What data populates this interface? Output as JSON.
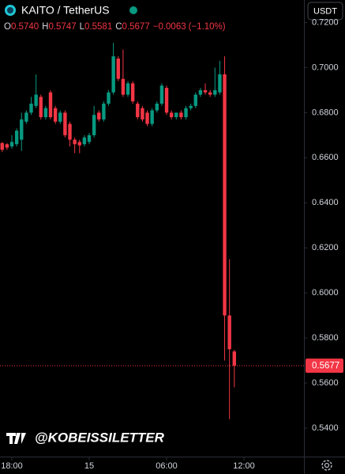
{
  "chart_data": {
    "type": "candlestick",
    "title": "KAITO / TetherUS",
    "quote_currency": "USDT",
    "watermark": "@KOBEISSILETTER",
    "header": {
      "labels": [
        "O",
        "H",
        "L",
        "C"
      ],
      "values": [
        "0.5740",
        "0.5747",
        "0.5581",
        "0.5677"
      ],
      "change": "−0.0063",
      "change_pct": "(−1.10%)"
    },
    "colors": {
      "up": "#089981",
      "down": "#f23645"
    },
    "open": [
      0.6665,
      0.666,
      0.665,
      0.666,
      0.668,
      0.676,
      0.68,
      0.683,
      0.687,
      0.678,
      0.689,
      0.682,
      0.676,
      0.68,
      0.675,
      0.668,
      0.667,
      0.666,
      0.667,
      0.67,
      0.68,
      0.677,
      0.684,
      0.689,
      0.704,
      0.695,
      0.688,
      0.693,
      0.684,
      0.682,
      0.68,
      0.675,
      0.681,
      0.684,
      0.691,
      0.68,
      0.678,
      0.68,
      0.678,
      0.682,
      0.683,
      0.688,
      0.69,
      0.689,
      0.688,
      0.689,
      0.697,
      0.59,
      0.574
    ],
    "high": [
      0.667,
      0.6665,
      0.67,
      0.673,
      0.68,
      0.681,
      0.687,
      0.697,
      0.688,
      0.683,
      0.69,
      0.683,
      0.681,
      0.681,
      0.676,
      0.669,
      0.668,
      0.67,
      0.671,
      0.683,
      0.681,
      0.685,
      0.69,
      0.711,
      0.705,
      0.708,
      0.694,
      0.694,
      0.685,
      0.683,
      0.681,
      0.682,
      0.685,
      0.693,
      0.692,
      0.681,
      0.68,
      0.681,
      0.683,
      0.684,
      0.689,
      0.691,
      0.693,
      0.69,
      0.7,
      0.703,
      0.705,
      0.615,
      0.5747
    ],
    "low": [
      0.6625,
      0.6635,
      0.664,
      0.665,
      0.663,
      0.675,
      0.679,
      0.682,
      0.677,
      0.677,
      0.677,
      0.675,
      0.675,
      0.669,
      0.665,
      0.662,
      0.662,
      0.665,
      0.666,
      0.669,
      0.676,
      0.676,
      0.683,
      0.688,
      0.694,
      0.687,
      0.687,
      0.684,
      0.677,
      0.676,
      0.674,
      0.674,
      0.68,
      0.683,
      0.679,
      0.677,
      0.677,
      0.677,
      0.677,
      0.681,
      0.682,
      0.687,
      0.688,
      0.687,
      0.687,
      0.688,
      0.57,
      0.544,
      0.5581
    ],
    "close": [
      0.6635,
      0.6645,
      0.667,
      0.672,
      0.677,
      0.68,
      0.684,
      0.688,
      0.678,
      0.682,
      0.678,
      0.676,
      0.68,
      0.67,
      0.668,
      0.666,
      0.6655,
      0.669,
      0.67,
      0.679,
      0.677,
      0.684,
      0.689,
      0.705,
      0.695,
      0.688,
      0.693,
      0.685,
      0.678,
      0.677,
      0.675,
      0.681,
      0.684,
      0.692,
      0.68,
      0.678,
      0.68,
      0.678,
      0.682,
      0.683,
      0.688,
      0.69,
      0.689,
      0.688,
      0.69,
      0.697,
      0.59,
      0.575,
      0.5677
    ],
    "ylim": [
      0.527,
      0.73
    ],
    "yticks": [
      {
        "value": 0.54,
        "label": "0.5400"
      },
      {
        "value": 0.56,
        "label": "0.5600"
      },
      {
        "value": 0.58,
        "label": "0.5800"
      },
      {
        "value": 0.6,
        "label": "0.6000"
      },
      {
        "value": 0.62,
        "label": "0.6200"
      },
      {
        "value": 0.64,
        "label": "0.6400"
      },
      {
        "value": 0.66,
        "label": "0.6600"
      },
      {
        "value": 0.68,
        "label": "0.6800"
      },
      {
        "value": 0.7,
        "label": "0.7000"
      },
      {
        "value": 0.72,
        "label": "0.7200"
      }
    ],
    "xlim": [
      -0.45,
      62.4
    ],
    "xticks": [
      {
        "value": 2,
        "label": "18:00"
      },
      {
        "value": 18,
        "label": "15"
      },
      {
        "value": 34,
        "label": "06:00"
      },
      {
        "value": 50,
        "label": "12:00"
      }
    ],
    "last_price": {
      "value": 0.5677,
      "label": "0.5677"
    }
  }
}
